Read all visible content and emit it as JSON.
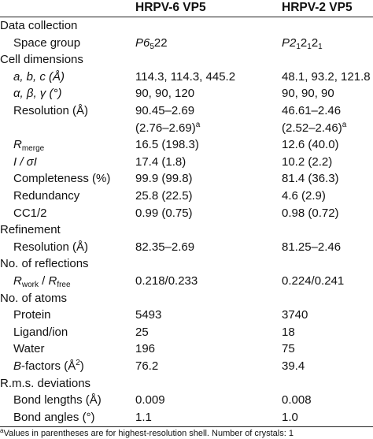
{
  "columns": [
    "",
    "HRPV-6 VP5",
    "HRPV-2 VP5"
  ],
  "sections": {
    "data_collection": "Data collection",
    "cell_dimensions": "Cell dimensions",
    "refinement": "Refinement",
    "reflections": "No. of reflections",
    "atoms": "No. of atoms",
    "rms": "R.m.s. deviations"
  },
  "labels": {
    "space_group": "Space group",
    "abc": "a, b, c (Å)",
    "angles": "α, β, γ (°)",
    "resolution": "Resolution (Å)",
    "r_merge_R": "R",
    "r_merge_sub": "merge",
    "i_sigma": "I / σI",
    "completeness": "Completeness (%)",
    "redundancy": "Redundancy",
    "cc": "CC1/2",
    "ref_resolution": "Resolution (Å)",
    "r_work_R": "R",
    "r_work_sub": "work",
    "r_sep": " / ",
    "r_free_R": "R",
    "r_free_sub": "free",
    "protein": "Protein",
    "ligand": "Ligand/ion",
    "water": "Water",
    "bfactors_B": "B",
    "bfactors_rest": "-factors (Å",
    "bfactors_sup": "2",
    "bfactors_end": ")",
    "bond_lengths": "Bond lengths (Å)",
    "bond_angles": "Bond angles (°)"
  },
  "hrpv6": {
    "space_group_main": "P6",
    "space_group_sub": "5",
    "space_group_end": "22",
    "abc": "114.3, 114.3, 445.2",
    "angles": "90, 90, 120",
    "resolution": "90.45–2.69",
    "resolution_shell": "(2.76–2.69)",
    "shell_mark": "a",
    "r_merge": "16.5 (198.3)",
    "i_sigma": "17.4 (1.8)",
    "completeness": "99.9 (99.8)",
    "redundancy": "25.8 (22.5)",
    "cc": "0.99 (0.75)",
    "ref_resolution": "82.35–2.69",
    "r_work_free": "0.218/0.233",
    "protein": "5493",
    "ligand": "25",
    "water": "196",
    "bfactors": "76.2",
    "bond_lengths": "0.009",
    "bond_angles": "1.1"
  },
  "hrpv2": {
    "space_group_main": "P2",
    "space_group_sub1": "1",
    "space_group_mid1": "2",
    "space_group_sub2": "1",
    "space_group_mid2": "2",
    "space_group_sub3": "1",
    "abc": "48.1, 93.2, 121.8",
    "angles": "90, 90, 90",
    "resolution": "46.61–2.46",
    "resolution_shell": "(2.52–2.46)",
    "shell_mark": "a",
    "r_merge": "12.6 (40.0)",
    "i_sigma": "10.2 (2.2)",
    "completeness": "81.4 (36.3)",
    "redundancy": "4.6 (2.9)",
    "cc": "0.98 (0.72)",
    "ref_resolution": "81.25–2.46",
    "r_work_free": "0.224/0.241",
    "protein": "3740",
    "ligand": "18",
    "water": "75",
    "bfactors": "39.4",
    "bond_lengths": "0.008",
    "bond_angles": "1.0"
  },
  "footnote_mark": "a",
  "footnote": "Values in parentheses are for highest-resolution shell. Number of crystals: 1"
}
